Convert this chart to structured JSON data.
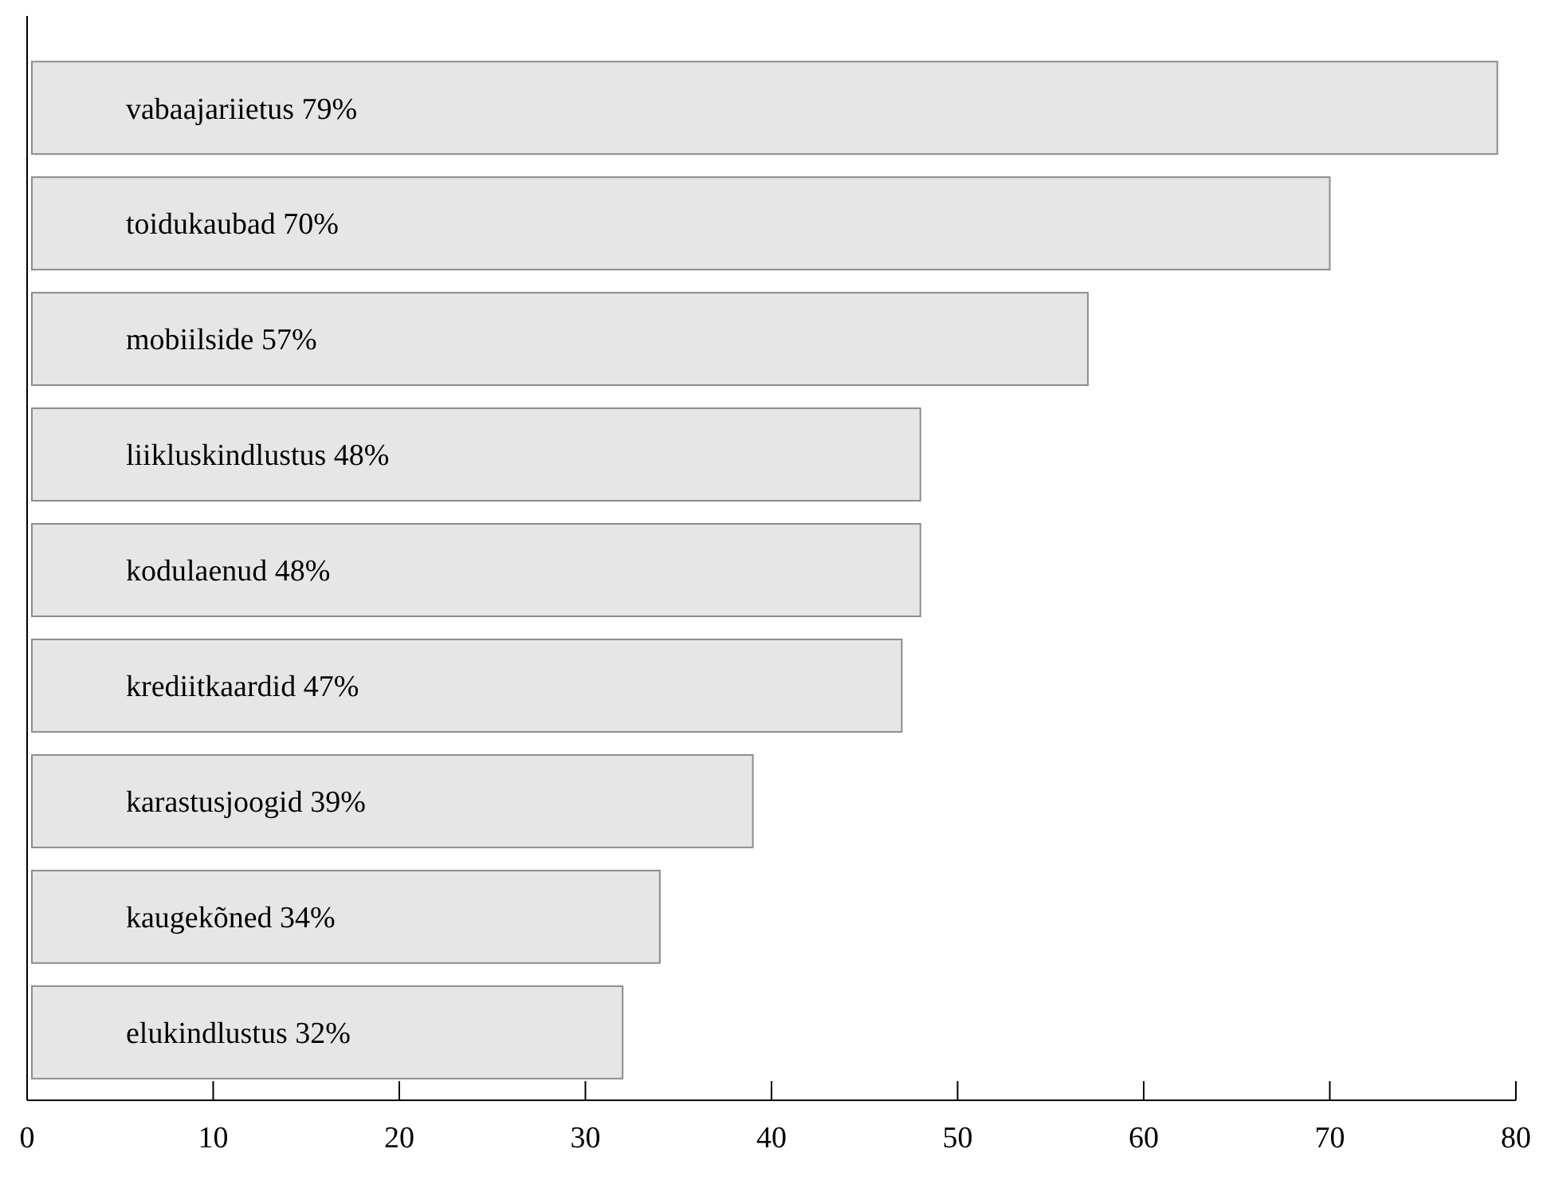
{
  "chart_data": {
    "type": "bar",
    "orientation": "horizontal",
    "categories": [
      "vabaajariietus",
      "toidukaubad",
      "mobiilside",
      "liikluskindlustus",
      "kodulaenud",
      "krediitkaardid",
      "karastusjoogid",
      "kaugekõned",
      "elukindlustus"
    ],
    "values": [
      79,
      70,
      57,
      48,
      48,
      47,
      39,
      34,
      32
    ],
    "value_labels": [
      "79%",
      "70%",
      "57%",
      "48%",
      "48%",
      "47%",
      "39%",
      "34%",
      "32%"
    ],
    "color": "#e6e6e6",
    "xlim": [
      0,
      80
    ],
    "xticks": [
      0,
      10,
      20,
      30,
      40,
      50,
      60,
      70,
      80
    ],
    "grid": false
  }
}
